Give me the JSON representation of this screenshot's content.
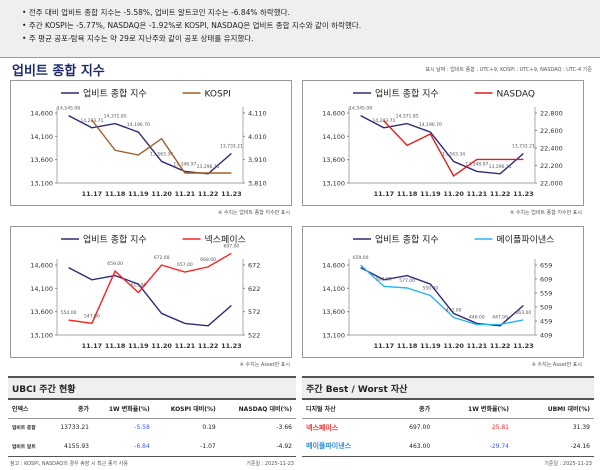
{
  "summary": [
    "전주 대비 업비트 종합 지수는 -5.58%, 업비트 알트코인 지수는 -6.84% 하락했다.",
    "주간 KOSPI는 -5.77%, NASDAQ은 -1.92%로 KOSPI, NASDAQ은 업비트 종합 지수와 같이 하락했다.",
    "주 평균 공포-탐욕 지수는 약 29로 지난주와 같이 공포 상태를 유지했다."
  ],
  "section_title": "업비트 종합 지수",
  "section_note": "표시 날짜 : 업비트 종합 : UTC+9, KOSPI : UTC+9, NASDAQ : UTC-4 기준",
  "chart_data": [
    {
      "type": "line",
      "categories": [
        "",
        "11.17",
        "11.18",
        "11.19",
        "11.20",
        "11.21",
        "11.22",
        "11.23"
      ],
      "ylim": [
        13100,
        14600
      ],
      "yticks": [
        "13,100",
        "13,600",
        "14,100",
        "14,600"
      ],
      "y2lim": [
        3810,
        4110
      ],
      "y2ticks": [
        "3,810",
        "3,910",
        "4,010",
        "4,110"
      ],
      "series": [
        {
          "name": "업비트 종합 지수",
          "color": "#2e2a78",
          "axis": "left",
          "values": [
            14545.08,
            14283.71,
            14371.85,
            14190.7,
            13563.34,
            13348.97,
            13296.11,
            13733.21
          ],
          "labels": [
            "14,545.08",
            "14,283.71",
            "14,371.85",
            "14,190.70",
            "13,563.34",
            "13,348.97",
            "13,296.11",
            "13,733.21"
          ]
        },
        {
          "name": "KOSPI",
          "color": "#a0612d",
          "axis": "right",
          "values": [
            null,
            4080,
            3950,
            3930,
            4000,
            3853,
            3853,
            3853
          ]
        }
      ],
      "footnote": "※ 수치는 업비트 종합 지수만 표시"
    },
    {
      "type": "line",
      "categories": [
        "",
        "11.17",
        "11.18",
        "11.19",
        "11.20",
        "11.21",
        "11.22",
        "11.23"
      ],
      "ylim": [
        13100,
        14600
      ],
      "yticks": [
        "13,100",
        "13,600",
        "14,100",
        "14,600"
      ],
      "y2lim": [
        22000,
        22800
      ],
      "y2ticks": [
        "22,000",
        "22,200",
        "22,400",
        "22,600",
        "22,800"
      ],
      "series": [
        {
          "name": "업비트 종합 지수",
          "color": "#2e2a78",
          "axis": "left",
          "values": [
            14545.08,
            14283.71,
            14371.85,
            14190.7,
            13563.34,
            13348.97,
            13296.11,
            13733.21
          ],
          "labels": [
            "14,545.08",
            "14,283.71",
            "14,371.85",
            "14,190.70",
            "13,563.34",
            "13,348.97",
            "13,296.11",
            "13,733.21"
          ]
        },
        {
          "name": "NASDAQ",
          "color": "#e02020",
          "axis": "right",
          "values": [
            null,
            22710,
            22430,
            22560,
            22080,
            22270,
            22270,
            22270
          ]
        }
      ],
      "footnote": "※ 수치는 업비트 종합 지수만 표시"
    },
    {
      "type": "line",
      "categories": [
        "",
        "11.17",
        "11.18",
        "11.19",
        "11.20",
        "11.21",
        "11.22",
        "11.23"
      ],
      "ylim": [
        13100,
        14600
      ],
      "yticks": [
        "13,100",
        "13,600",
        "14,100",
        "14,600"
      ],
      "y2lim": [
        522,
        672
      ],
      "y2ticks": [
        "522",
        "572",
        "622",
        "672"
      ],
      "series": [
        {
          "name": "업비트 종합 지수",
          "color": "#2e2a78",
          "axis": "left",
          "values": [
            14545.08,
            14283.71,
            14371.85,
            14190.7,
            13563.34,
            13348.97,
            13296.11,
            13733.21
          ]
        },
        {
          "name": "넥스페이스",
          "color": "#ff2020",
          "axis": "right",
          "values": [
            554,
            547,
            659,
            613,
            672,
            657,
            668,
            697
          ],
          "labels": [
            "554.00",
            "547.00",
            "659.00",
            "613.00",
            "672.00",
            "657.00",
            "668.00",
            "697.00"
          ]
        }
      ],
      "footnote": "※ 수치는 Asset만 표시"
    },
    {
      "type": "line",
      "categories": [
        "",
        "11.17",
        "11.18",
        "11.19",
        "11.20",
        "11.21",
        "11.22",
        "11.23"
      ],
      "ylim": [
        13100,
        14600
      ],
      "yticks": [
        "13,100",
        "13,600",
        "14,100",
        "14,600"
      ],
      "y2lim": [
        409,
        659
      ],
      "y2ticks": [
        "409",
        "459",
        "509",
        "559",
        "609",
        "659"
      ],
      "series": [
        {
          "name": "업비트 종합 지수",
          "color": "#2e2a78",
          "axis": "left",
          "values": [
            14545.08,
            14283.71,
            14371.85,
            14190.7,
            13563.34,
            13348.97,
            13296.11,
            13733.21
          ]
        },
        {
          "name": "메이플파이낸스",
          "color": "#29b6f0",
          "axis": "right",
          "values": [
            659,
            583,
            577,
            550,
            472,
            446,
            447,
            463
          ],
          "labels": [
            "659.00",
            "583.00",
            "577.00",
            "550.00",
            "472.00",
            "446.00",
            "447.00",
            "463.00"
          ]
        }
      ],
      "footnote": "※ 수치는 Asset만 표시"
    }
  ],
  "ubci": {
    "title": "UBCI 주간 현황",
    "headers": [
      "인덱스",
      "종가",
      "1W 변화율(%)",
      "KOSPI 대비(%)",
      "NASDAQ 대비(%)"
    ],
    "rows": [
      [
        "업비트 종합",
        "13733.21",
        "-5.58",
        "0.19",
        "-3.66"
      ],
      [
        "업비트 알트",
        "4155.93",
        "-6.84",
        "-1.07",
        "-4.92"
      ]
    ],
    "note": "참고 : KOSPI, NASDAQ의 경우 휴장 시 최근 종가 사용",
    "date": "기준일 : 2025-11-23"
  },
  "best": {
    "title": "주간 Best / Worst 자산",
    "headers": [
      "디지털 자산",
      "종가",
      "1W 변화율(%)",
      "UBMI 대비(%)"
    ],
    "rows": [
      [
        "넥스페이스",
        "697.00",
        "25.81",
        "31.39"
      ],
      [
        "메이플파이낸스",
        "463.00",
        "-29.74",
        "-24.16"
      ]
    ],
    "date": "기준일 : 2025-11-23"
  }
}
